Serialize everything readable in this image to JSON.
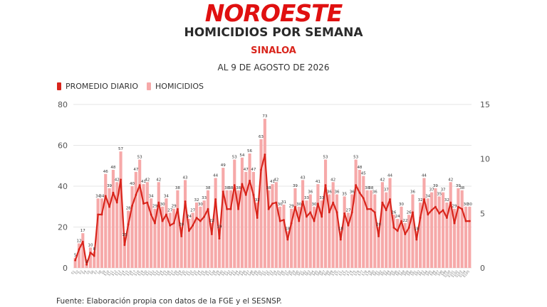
{
  "brand": {
    "logo_text": "NOROESTE",
    "color": "#e01010"
  },
  "header": {
    "title": "HOMICIDIOS POR SEMANA",
    "subtitle": "SINALOA",
    "date": "AL 9 DE AGOSTO DE 2026"
  },
  "legend": {
    "line_label": "PROMEDIO DIARIO",
    "bar_label": "HOMICIDIOS"
  },
  "footer": {
    "source": "Fuente: Elaboración propia con datos de la FGE y el SESNSP."
  },
  "colors": {
    "bar": "#f6a9a9",
    "line": "#d9251c",
    "grid": "#e6e6e6",
    "axis_text": "#555555"
  },
  "chart_data": {
    "type": "bar",
    "title": "HOMICIDIOS POR SEMANA",
    "ylim_left": [
      0,
      80
    ],
    "yticks_left": [
      0,
      20,
      40,
      60,
      80
    ],
    "ylim_right": [
      0,
      15
    ],
    "yticks_right": [
      0,
      5,
      10,
      15
    ],
    "grid": true,
    "legend_placement": "top-left",
    "series": [
      {
        "name": "HOMICIDIOS",
        "type": "bar",
        "axis": "left",
        "values": [
          5,
          12,
          17,
          2,
          10,
          8,
          34,
          34,
          46,
          39,
          48,
          42,
          57,
          15,
          28,
          40,
          47,
          53,
          41,
          42,
          34,
          29,
          42,
          30,
          34,
          27,
          29,
          38,
          20,
          43,
          24,
          27,
          32,
          30,
          33,
          38,
          22,
          44,
          19,
          49,
          38,
          38,
          53,
          38,
          54,
          47,
          56,
          47,
          32,
          63,
          73,
          38,
          41,
          42,
          30,
          31,
          18,
          29,
          39,
          30,
          43,
          33,
          36,
          30,
          41,
          33,
          53,
          36,
          42,
          36,
          18,
          35,
          27,
          36,
          53,
          48,
          45,
          38,
          38,
          36,
          20,
          42,
          37,
          44,
          26,
          24,
          30,
          22,
          26,
          36,
          18,
          32,
          44,
          34,
          37,
          39,
          35,
          37,
          32,
          42,
          29,
          39,
          38,
          30,
          30
        ]
      },
      {
        "name": "PROMEDIO DIARIO",
        "type": "line",
        "axis": "right",
        "values": [
          0.7,
          1.7,
          2.4,
          0.3,
          1.4,
          1.1,
          4.9,
          4.9,
          6.6,
          5.6,
          6.9,
          6.0,
          8.1,
          2.1,
          4.0,
          5.7,
          6.7,
          7.6,
          5.9,
          6.0,
          4.9,
          4.1,
          6.0,
          4.3,
          4.9,
          3.9,
          4.1,
          5.4,
          2.9,
          6.1,
          3.4,
          3.9,
          4.6,
          4.3,
          4.7,
          5.4,
          3.1,
          6.3,
          2.7,
          7.0,
          5.4,
          5.4,
          7.6,
          5.4,
          7.7,
          6.7,
          8.0,
          6.7,
          4.6,
          9.0,
          10.4,
          5.4,
          5.9,
          6.0,
          4.3,
          4.4,
          2.6,
          4.1,
          5.6,
          4.3,
          6.1,
          4.7,
          5.1,
          4.3,
          5.9,
          4.7,
          7.6,
          5.1,
          6.0,
          5.1,
          2.6,
          5.0,
          3.9,
          5.1,
          7.6,
          6.9,
          6.4,
          5.4,
          5.4,
          5.1,
          2.9,
          6.0,
          5.3,
          6.3,
          3.7,
          3.4,
          4.3,
          3.1,
          3.7,
          5.1,
          2.6,
          4.6,
          6.3,
          4.9,
          5.3,
          5.6,
          5.0,
          5.3,
          4.6,
          6.0,
          4.1,
          5.6,
          5.4,
          4.3,
          4.3
        ]
      }
    ],
    "bar_value_labels": [
      "5",
      "12",
      "17",
      "2",
      "10",
      "8",
      "34",
      "34",
      "46",
      "39",
      "48",
      "42",
      "57",
      "15",
      "28",
      "40",
      "47",
      "53",
      "41",
      "42",
      "34",
      "29",
      "42",
      "30",
      "34",
      "27",
      "29",
      "38",
      "20",
      "43",
      "24",
      "27",
      "32",
      "30",
      "33",
      "38",
      "22",
      "44",
      "19",
      "49",
      "38",
      "38",
      "53",
      "38",
      "54",
      "47",
      "56",
      "47",
      "32",
      "63",
      "73",
      "38",
      "41",
      "42",
      "30",
      "31",
      "18",
      "29",
      "39",
      "30",
      "43",
      "33",
      "36",
      "30",
      "41",
      "33",
      "53",
      "36",
      "42",
      "36",
      "18",
      "35",
      "27",
      "36",
      "53",
      "48",
      "45",
      "38",
      "38",
      "36",
      "20",
      "42",
      "37",
      "44",
      "26",
      "24",
      "30",
      "22",
      "26",
      "36",
      "18",
      "32",
      "44",
      "34",
      "37",
      "39",
      "35",
      "37",
      "32",
      "42",
      "29",
      "39",
      "38",
      "30",
      "30"
    ],
    "x_labels": [
      "S1",
      "S2",
      "S3",
      "S4",
      "S5",
      "S6",
      "S7",
      "S8",
      "S9",
      "S10",
      "S11",
      "S12",
      "S13",
      "S14",
      "S15",
      "S16",
      "S17",
      "S18",
      "S19",
      "S20",
      "S21",
      "S22",
      "S23",
      "S24",
      "S25",
      "S26",
      "S27",
      "S28",
      "S29",
      "S30",
      "S31",
      "S32",
      "S33",
      "S34",
      "S35",
      "S36",
      "S37",
      "S38",
      "S39",
      "S40",
      "S41",
      "S42",
      "S43",
      "S44",
      "S45",
      "S46",
      "S47",
      "S48",
      "S49",
      "S50",
      "S51",
      "S52",
      "S53",
      "S54",
      "S55",
      "S56",
      "S57",
      "S58",
      "S59",
      "S60",
      "S61",
      "S62",
      "S63",
      "S64",
      "S65",
      "S66",
      "S67",
      "S68",
      "S69",
      "S70",
      "S71",
      "S72",
      "S73",
      "S74",
      "S75",
      "S76",
      "S77",
      "S78",
      "S79",
      "S80",
      "S81",
      "S82",
      "S83",
      "S84",
      "S85",
      "S86",
      "S87",
      "S88",
      "S89",
      "S90",
      "S91",
      "S92",
      "S93",
      "S94",
      "S95",
      "S96",
      "S97",
      "S98",
      "S99",
      "S100",
      "S101",
      "S102",
      "S103",
      "S104",
      "S105"
    ]
  }
}
